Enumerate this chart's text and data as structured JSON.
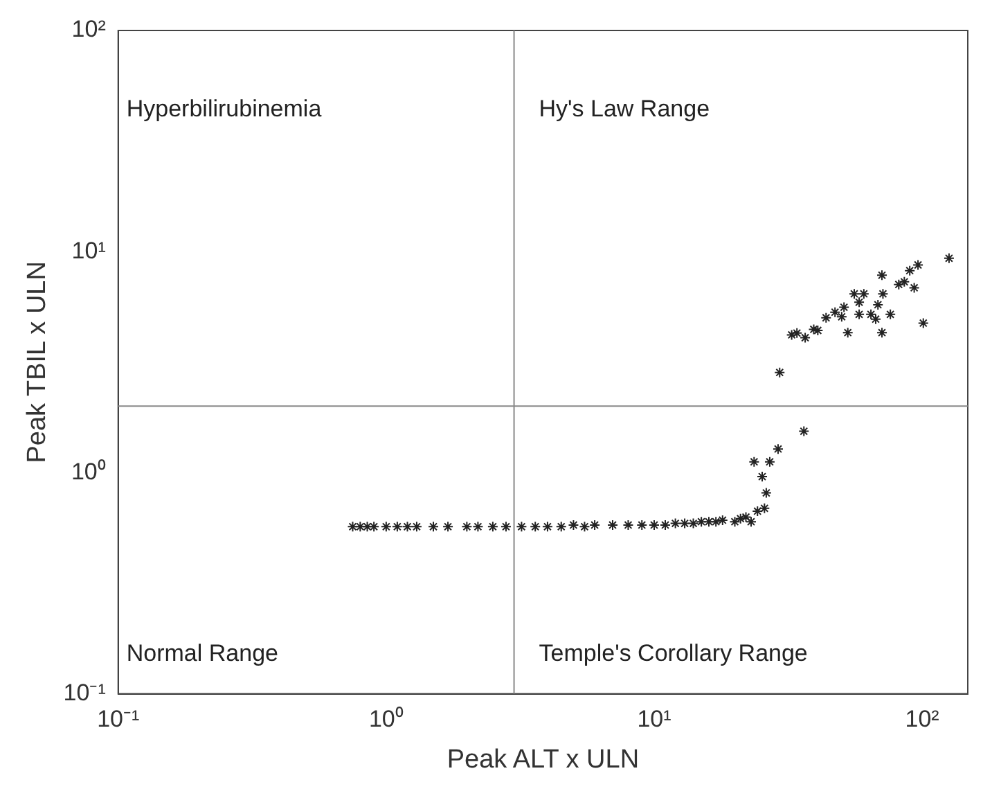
{
  "chart_data": {
    "type": "scatter",
    "xlabel": "Peak ALT x ULN",
    "ylabel": "Peak TBIL x ULN",
    "log": "xy",
    "grid": false,
    "legend": false,
    "marker": "cross",
    "xlim": [
      0.1,
      148
    ],
    "ylim": [
      0.1,
      100
    ],
    "xticks": [
      {
        "value": 0.1,
        "label": "10⁻¹"
      },
      {
        "value": 1,
        "label": "10⁰"
      },
      {
        "value": 10,
        "label": "10¹"
      },
      {
        "value": 100,
        "label": "10²"
      }
    ],
    "yticks": [
      {
        "value": 0.1,
        "label": "10⁻¹"
      },
      {
        "value": 1,
        "label": "10⁰"
      },
      {
        "value": 10,
        "label": "10¹"
      },
      {
        "value": 100,
        "label": "10²"
      }
    ],
    "ref_lines": [
      {
        "axis": "x",
        "value": 3,
        "color": "#888888"
      },
      {
        "axis": "y",
        "value": 2,
        "color": "#888888"
      }
    ],
    "annotations": [
      "Hyperbilirubinemia",
      "Hy's Law Range",
      "Normal Range",
      "Temple's Corollary Range"
    ],
    "series": [
      {
        "color": "#222222",
        "x": [
          0.75,
          0.8,
          0.85,
          0.9,
          1.0,
          1.1,
          1.2,
          1.3,
          1.5,
          1.7,
          2.0,
          2.2,
          2.5,
          2.8,
          3.2,
          3.6,
          4,
          4.5,
          5,
          5.5,
          6,
          7,
          8,
          9,
          10,
          11,
          12,
          13,
          14,
          15,
          16,
          17,
          18,
          20,
          21,
          22,
          23,
          24.3,
          25.8,
          26.2,
          25.3,
          23.6,
          27,
          29,
          36.2,
          29.4,
          34.1,
          36.6,
          32.6,
          39.4,
          40.8,
          43.8,
          47.3,
          50.1,
          51.1,
          52.8,
          55.8,
          58.2,
          60.6,
          58.2,
          64.4,
          67.1,
          68.4,
          70.8,
          71.4,
          70.8,
          76.1,
          81.8,
          85.8,
          89.9,
          93.4,
          96.5,
          101,
          126
        ],
        "values": [
          0.57,
          0.57,
          0.57,
          0.57,
          0.57,
          0.57,
          0.57,
          0.57,
          0.57,
          0.57,
          0.57,
          0.57,
          0.57,
          0.57,
          0.57,
          0.57,
          0.57,
          0.57,
          0.58,
          0.57,
          0.58,
          0.58,
          0.58,
          0.58,
          0.58,
          0.58,
          0.59,
          0.59,
          0.59,
          0.6,
          0.6,
          0.6,
          0.61,
          0.6,
          0.62,
          0.63,
          0.6,
          0.67,
          0.69,
          0.81,
          0.96,
          1.12,
          1.12,
          1.28,
          1.54,
          2.84,
          4.28,
          4.08,
          4.2,
          4.45,
          4.4,
          5.02,
          5.32,
          5.07,
          5.6,
          4.3,
          6.44,
          5.9,
          6.44,
          5.2,
          5.2,
          4.95,
          5.75,
          7.82,
          6.44,
          4.3,
          5.2,
          7.1,
          7.3,
          8.2,
          6.86,
          8.7,
          4.75,
          9.33
        ]
      }
    ]
  }
}
